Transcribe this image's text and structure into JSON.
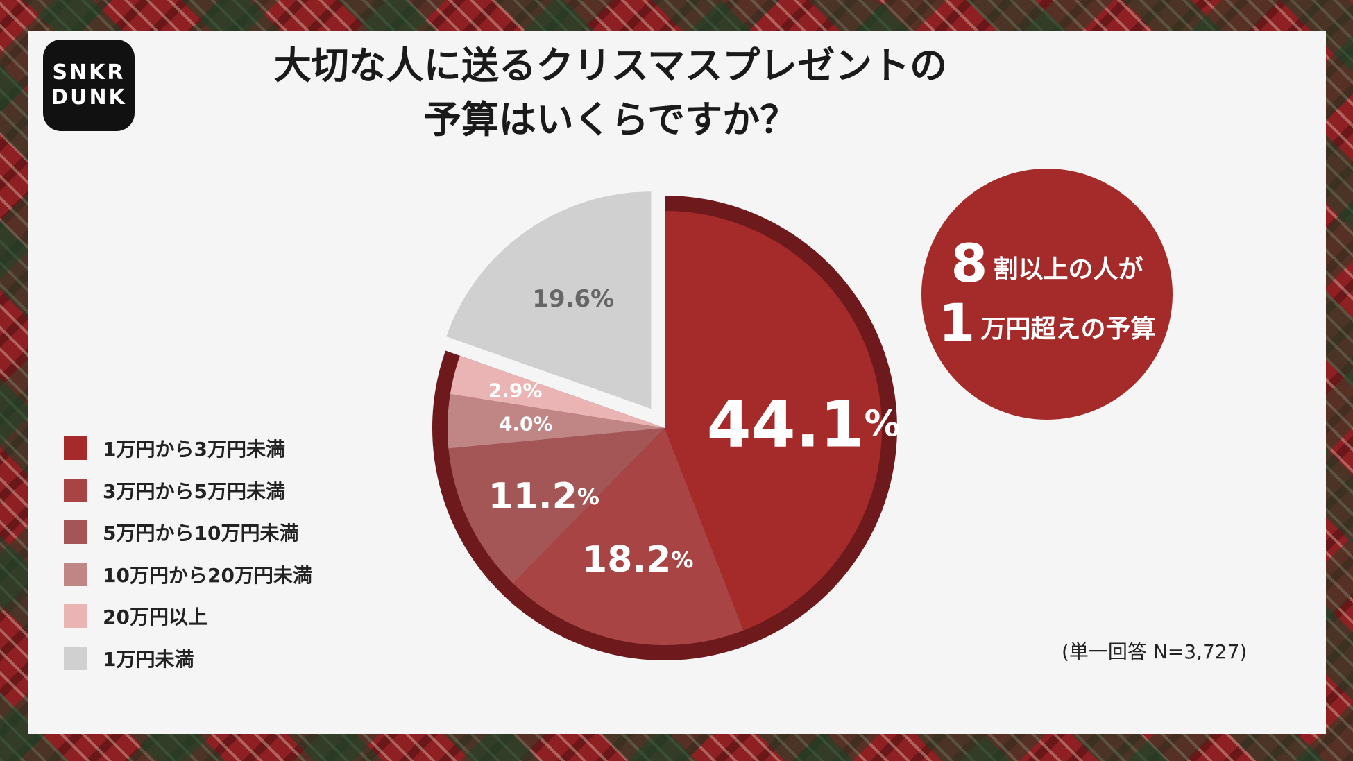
{
  "logo": {
    "line1": "SNKR",
    "line2": "DUNK"
  },
  "title": {
    "line1": "大切な人に送るクリスマスプレゼントの",
    "line2": "予算はいくらですか？"
  },
  "colors": {
    "s1": "#a52a2a",
    "s2": "#a94444",
    "s3": "#a45656",
    "s4": "#c08585",
    "s5": "#eab4b4",
    "s6": "#d0d0d0",
    "outline": "#6e1a1c"
  },
  "chart_data": {
    "type": "pie",
    "start_angle_deg": 0,
    "direction": "clockwise",
    "slices": [
      {
        "label": "1万円から3万円未満",
        "value": 44.1,
        "display": "44.1",
        "unit": "%"
      },
      {
        "label": "3万円から5万円未満",
        "value": 18.2,
        "display": "18.2",
        "unit": "%"
      },
      {
        "label": "5万円から10万円未満",
        "value": 11.2,
        "display": "11.2",
        "unit": "%"
      },
      {
        "label": "10万円から20万円未満",
        "value": 4.0,
        "display": "4.0",
        "unit": "%"
      },
      {
        "label": "20万円以上",
        "value": 2.9,
        "display": "2.9",
        "unit": "%"
      },
      {
        "label": "1万円未満",
        "value": 19.6,
        "display": "19.6",
        "unit": "%"
      }
    ],
    "exploded": "1万円未満",
    "highlighted_group": [
      "1万円から3万円未満",
      "3万円から5万円未満",
      "5万円から10万円未満",
      "10万円から20万円未満",
      "20万円以上"
    ]
  },
  "callout": {
    "line1_big": "8",
    "line1_rest": "割以上の人が",
    "line2_big": "1",
    "line2_rest": "万円超えの予算"
  },
  "note": "(単一回答 N=3,727)"
}
